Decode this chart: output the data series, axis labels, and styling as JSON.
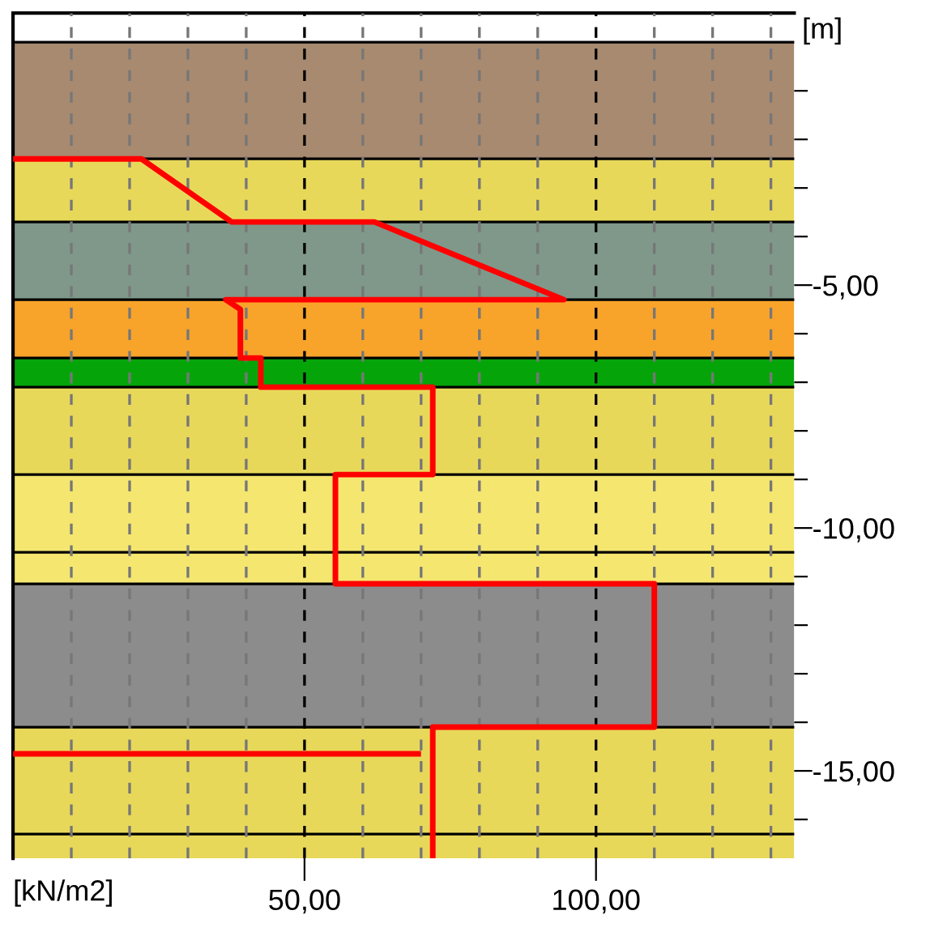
{
  "chart_data": {
    "type": "line",
    "xlabel": "[kN/m2]",
    "ylabel": "[m]",
    "xlim": [
      0,
      134
    ],
    "ylim": [
      -16.8,
      0.6
    ],
    "xticks": [
      {
        "value": 10,
        "label": null
      },
      {
        "value": 20,
        "label": null
      },
      {
        "value": 30,
        "label": null
      },
      {
        "value": 40,
        "label": null
      },
      {
        "value": 50,
        "label": "50,00"
      },
      {
        "value": 60,
        "label": null
      },
      {
        "value": 70,
        "label": null
      },
      {
        "value": 80,
        "label": null
      },
      {
        "value": 90,
        "label": null
      },
      {
        "value": 100,
        "label": "100,00"
      },
      {
        "value": 110,
        "label": null
      },
      {
        "value": 120,
        "label": null
      },
      {
        "value": 130,
        "label": null
      }
    ],
    "yticks": [
      {
        "value": -1,
        "label": null
      },
      {
        "value": -2,
        "label": null
      },
      {
        "value": -3,
        "label": null
      },
      {
        "value": -4,
        "label": null
      },
      {
        "value": -5,
        "label": "-5,00"
      },
      {
        "value": -6,
        "label": null
      },
      {
        "value": -7,
        "label": null
      },
      {
        "value": -8,
        "label": null
      },
      {
        "value": -9,
        "label": null
      },
      {
        "value": -10,
        "label": "-10,00"
      },
      {
        "value": -11,
        "label": null
      },
      {
        "value": -12,
        "label": null
      },
      {
        "value": -13,
        "label": null
      },
      {
        "value": -14,
        "label": null
      },
      {
        "value": -15,
        "label": "-15,00"
      },
      {
        "value": -16,
        "label": null
      }
    ],
    "grid": "x",
    "legend": false,
    "marker": "none",
    "line_style": "solid",
    "bands": [
      {
        "axis": "y",
        "from": 0,
        "to": -2.4,
        "color": "#a88a70"
      },
      {
        "axis": "y",
        "from": -2.4,
        "to": -3.7,
        "color": "#e8d85a"
      },
      {
        "axis": "y",
        "from": -3.7,
        "to": -5.3,
        "color": "#7f988a"
      },
      {
        "axis": "y",
        "from": -5.3,
        "to": -6.5,
        "color": "#f8a42a"
      },
      {
        "axis": "y",
        "from": -6.5,
        "to": -7.1,
        "color": "#05a50a"
      },
      {
        "axis": "y",
        "from": -7.1,
        "to": -8.9,
        "color": "#e8d85a"
      },
      {
        "axis": "y",
        "from": -8.9,
        "to": -10.5,
        "color": "#f5e670"
      },
      {
        "axis": "y",
        "from": -10.5,
        "to": -11.15,
        "color": "#f5e670"
      },
      {
        "axis": "y",
        "from": -11.15,
        "to": -14.1,
        "color": "#8c8c8c"
      },
      {
        "axis": "y",
        "from": -14.1,
        "to": -16.3,
        "color": "#e8d85a"
      },
      {
        "axis": "y",
        "from": -16.3,
        "to": -16.8,
        "color": "#e8d85a"
      }
    ],
    "ref_lines": [
      {
        "axis": "y",
        "value": 0,
        "color": "#000000"
      },
      {
        "axis": "y",
        "value": -2.4,
        "color": "#000000"
      },
      {
        "axis": "y",
        "value": -3.7,
        "color": "#000000"
      },
      {
        "axis": "y",
        "value": -5.3,
        "color": "#000000"
      },
      {
        "axis": "y",
        "value": -6.5,
        "color": "#000000"
      },
      {
        "axis": "y",
        "value": -7.1,
        "color": "#000000"
      },
      {
        "axis": "y",
        "value": -8.9,
        "color": "#000000"
      },
      {
        "axis": "y",
        "value": -10.5,
        "color": "#000000"
      },
      {
        "axis": "y",
        "value": -11.15,
        "color": "#000000"
      },
      {
        "axis": "y",
        "value": -14.1,
        "color": "#000000"
      },
      {
        "axis": "y",
        "value": -16.3,
        "color": "#000000"
      }
    ],
    "series": [
      {
        "color": "#ff0000",
        "x": [
          0,
          22,
          37.5,
          62,
          94.5,
          36.5,
          39,
          39,
          42.5,
          42.5,
          72,
          72,
          55.3,
          55.3,
          110,
          110,
          72,
          72
        ],
        "values": [
          -2.4,
          -2.4,
          -3.7,
          -3.7,
          -5.3,
          -5.3,
          -5.5,
          -6.5,
          -6.5,
          -7.1,
          -7.1,
          -8.9,
          -8.9,
          -11.15,
          -11.15,
          -14.1,
          -14.1,
          -16.8
        ]
      },
      {
        "color": "#ff0000",
        "x": [
          0,
          69.5
        ],
        "values": [
          -14.65,
          -14.65
        ]
      }
    ]
  }
}
